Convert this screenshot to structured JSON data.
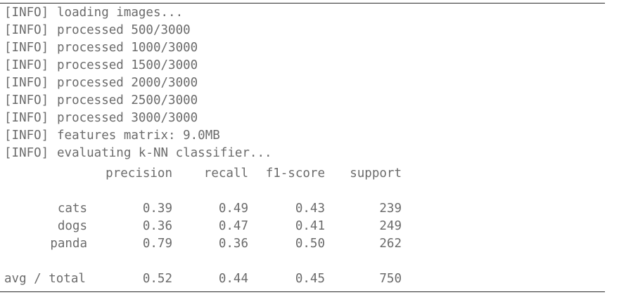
{
  "log_lines": [
    {
      "tag": "[INFO]",
      "text": "loading images..."
    },
    {
      "tag": "[INFO]",
      "text": "processed 500/3000"
    },
    {
      "tag": "[INFO]",
      "text": "processed 1000/3000"
    },
    {
      "tag": "[INFO]",
      "text": "processed 1500/3000"
    },
    {
      "tag": "[INFO]",
      "text": "processed 2000/3000"
    },
    {
      "tag": "[INFO]",
      "text": "processed 2500/3000"
    },
    {
      "tag": "[INFO]",
      "text": "processed 3000/3000"
    },
    {
      "tag": "[INFO]",
      "text": "features matrix: 9.0MB"
    },
    {
      "tag": "[INFO]",
      "text": "evaluating k-NN classifier..."
    }
  ],
  "report": {
    "headers": {
      "precision": "precision",
      "recall": "recall",
      "f1": "f1-score",
      "support": "support"
    },
    "rows": [
      {
        "label": "cats",
        "precision": "0.39",
        "recall": "0.49",
        "f1": "0.43",
        "support": "239"
      },
      {
        "label": "dogs",
        "precision": "0.36",
        "recall": "0.47",
        "f1": "0.41",
        "support": "249"
      },
      {
        "label": "panda",
        "precision": "0.79",
        "recall": "0.36",
        "f1": "0.50",
        "support": "262"
      }
    ],
    "total": {
      "label": "avg / total",
      "precision": "0.52",
      "recall": "0.44",
      "f1": "0.45",
      "support": "750"
    }
  },
  "colors": {
    "text": "#6b6b6b",
    "rule": "#2b2b2b",
    "background": "#ffffff"
  }
}
